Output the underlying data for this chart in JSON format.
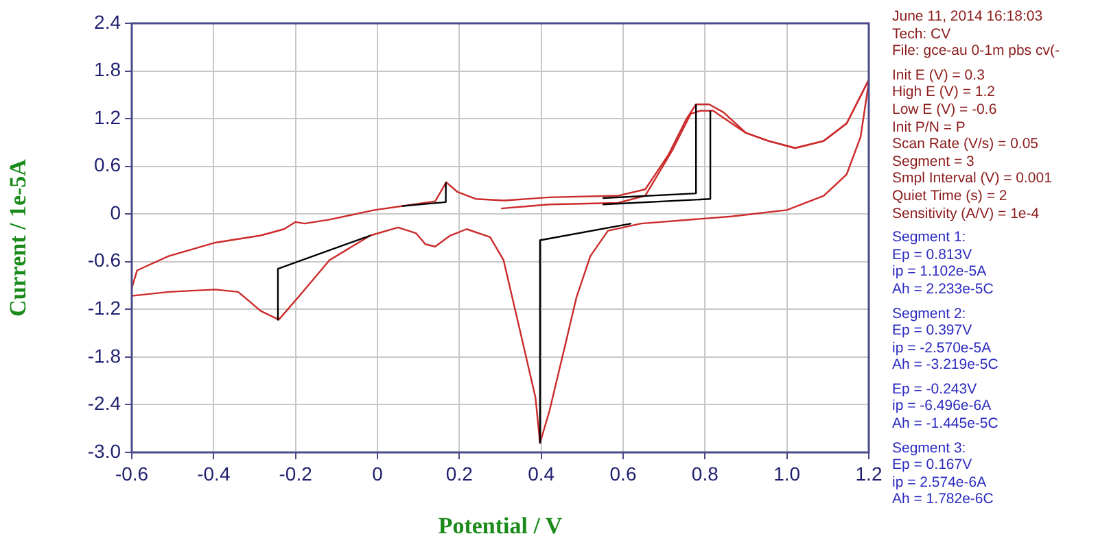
{
  "chart_data": {
    "type": "line",
    "xlabel": "Potential / V",
    "ylabel": "Current / 1e-5A",
    "xlim": [
      -0.6,
      1.2
    ],
    "xticks": [
      -0.6,
      -0.4,
      -0.2,
      0,
      0.2,
      0.4,
      0.6,
      0.8,
      {
        "value": 1,
        "label": "1.0"
      },
      1.2
    ],
    "ylim": [
      -3.0,
      2.4
    ],
    "yticks": [
      {
        "value": -3,
        "label": "-3.0"
      },
      -2.4,
      -1.8,
      -1.2,
      -0.6,
      0,
      0.6,
      1.2,
      1.8,
      2.4
    ],
    "grid": true,
    "legend": false,
    "marker": "none",
    "line_style": "solid",
    "series": [
      {
        "color": "#cc2a2a",
        "x": [
          0.302,
          0.419,
          0.587,
          0.654,
          0.72,
          0.765,
          0.788,
          0.82,
          0.865,
          0.9,
          0.955,
          1.02,
          1.09,
          1.146,
          1.2
        ],
        "values": [
          0.07,
          0.12,
          0.14,
          0.23,
          0.8,
          1.26,
          1.3,
          1.3,
          1.14,
          1.02,
          0.92,
          0.83,
          0.92,
          1.14,
          1.69
        ]
      },
      {
        "color": "#cc2a2a",
        "x": [
          1.2,
          1.18,
          1.146,
          1.09,
          1.0,
          0.865,
          0.644,
          0.563,
          0.52,
          0.486,
          0.452,
          0.42,
          0.397,
          0.386,
          0.342,
          0.308,
          0.275,
          0.218,
          0.178,
          0.141,
          0.117,
          0.094,
          0.05,
          -0.017,
          -0.117,
          -0.194,
          -0.241,
          -0.285,
          -0.34,
          -0.396,
          -0.51,
          -0.6
        ],
        "values": [
          1.66,
          0.97,
          0.5,
          0.23,
          0.05,
          -0.03,
          -0.12,
          -0.21,
          -0.53,
          -1.05,
          -1.79,
          -2.48,
          -2.88,
          -2.31,
          -1.33,
          -0.58,
          -0.29,
          -0.19,
          -0.27,
          -0.41,
          -0.38,
          -0.24,
          -0.17,
          -0.27,
          -0.58,
          -1.05,
          -1.33,
          -1.22,
          -0.98,
          -0.95,
          -0.98,
          -1.03
        ]
      },
      {
        "color": "#cc2a2a",
        "x": [
          -0.6,
          -0.587,
          -0.51,
          -0.396,
          -0.285,
          -0.228,
          -0.2,
          -0.178,
          -0.117,
          -0.007,
          0.074,
          0.141,
          0.168,
          0.195,
          0.24,
          0.31,
          0.419,
          0.587,
          0.654,
          0.71,
          0.754,
          0.778,
          0.81,
          0.845,
          0.9,
          0.955,
          1.02,
          1.09,
          1.146,
          1.2
        ],
        "values": [
          -0.93,
          -0.71,
          -0.53,
          -0.36,
          -0.27,
          -0.19,
          -0.1,
          -0.12,
          -0.07,
          0.05,
          0.11,
          0.16,
          0.4,
          0.28,
          0.19,
          0.17,
          0.21,
          0.23,
          0.31,
          0.74,
          1.19,
          1.38,
          1.38,
          1.28,
          1.02,
          0.92,
          0.83,
          0.92,
          1.14,
          1.69
        ]
      },
      {
        "color": "#000000",
        "x": [
          0.06,
          0.167,
          0.167
        ],
        "values": [
          0.1,
          0.15,
          0.4
        ]
      },
      {
        "color": "#000000",
        "x": [
          -0.017,
          -0.243,
          -0.243
        ],
        "values": [
          -0.27,
          -0.69,
          -1.33
        ]
      },
      {
        "color": "#000000",
        "x": [
          0.62,
          0.397,
          0.397
        ],
        "values": [
          -0.12,
          -0.33,
          -2.88
        ]
      },
      {
        "color": "#000000",
        "x": [
          0.55,
          0.813,
          0.813
        ],
        "values": [
          0.12,
          0.19,
          1.3
        ]
      },
      {
        "color": "#000000",
        "x": [
          0.55,
          0.778,
          0.778
        ],
        "values": [
          0.2,
          0.26,
          1.38
        ]
      }
    ],
    "annotations": [
      "June 11, 2014   16:18:03",
      "Tech: CV",
      "File: gce-au 0-1m pbs cv(-",
      "Init E (V) = 0.3",
      "High E (V) = 1.2",
      "Low E (V) = -0.6",
      "Init P/N = P",
      "Scan Rate (V/s) = 0.05",
      "Segment = 3",
      "Smpl Interval (V) = 0.001",
      "Quiet Time (s) = 2",
      "Sensitivity (A/V) = 1e-4",
      "Segment 1:",
      "Ep = 0.813V",
      "ip = 1.102e-5A",
      "Ah = 2.233e-5C",
      "Segment 2:",
      "Ep = 0.397V",
      "ip = -2.570e-5A",
      "Ah = -3.219e-5C",
      "Ep = -0.243V",
      "ip = -6.496e-6A",
      "Ah = -1.445e-5C",
      "Segment 3:",
      "Ep = 0.167V",
      "ip = 2.574e-6A",
      "Ah = 1.782e-6C"
    ]
  }
}
